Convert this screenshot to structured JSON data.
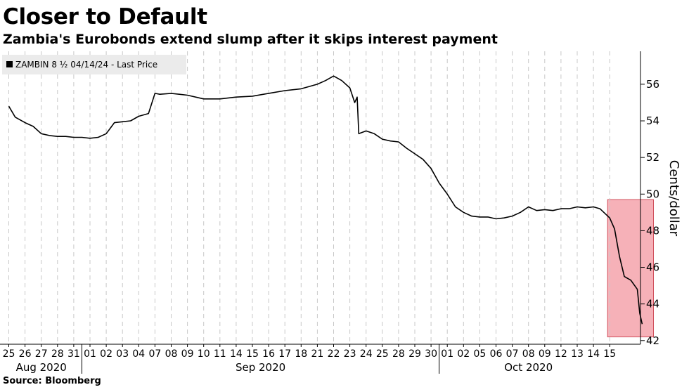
{
  "title": "Closer to Default",
  "subtitle": "Zambia's Eurobonds extend slump after it skips interest payment",
  "source": "Source: Bloomberg",
  "chart_data": {
    "type": "line",
    "ylabel": "Cents/dollar",
    "ylim": [
      41.8,
      57.8
    ],
    "yticks": [
      42,
      44,
      46,
      48,
      50,
      52,
      54,
      56
    ],
    "grid": "vertical dashed",
    "legend_position": "top-left",
    "series": [
      {
        "name": "ZAMBIN 8 ½ 04/14/24 - Last Price",
        "color": "#000000",
        "values": [
          [
            0,
            54.8
          ],
          [
            0.4,
            54.2
          ],
          [
            1.0,
            53.9
          ],
          [
            1.5,
            53.7
          ],
          [
            2.0,
            53.3
          ],
          [
            2.5,
            53.2
          ],
          [
            3.0,
            53.15
          ],
          [
            3.5,
            53.15
          ],
          [
            4.0,
            53.1
          ],
          [
            4.5,
            53.1
          ],
          [
            5.0,
            53.05
          ],
          [
            5.5,
            53.1
          ],
          [
            6.0,
            53.3
          ],
          [
            6.5,
            53.9
          ],
          [
            7.0,
            53.95
          ],
          [
            7.5,
            54.0
          ],
          [
            8.0,
            54.25
          ],
          [
            8.6,
            54.4
          ],
          [
            9.0,
            55.5
          ],
          [
            9.3,
            55.45
          ],
          [
            10.0,
            55.5
          ],
          [
            10.5,
            55.45
          ],
          [
            11.0,
            55.4
          ],
          [
            12.0,
            55.2
          ],
          [
            13.0,
            55.2
          ],
          [
            14.0,
            55.3
          ],
          [
            15.0,
            55.35
          ],
          [
            16.0,
            55.5
          ],
          [
            17.0,
            55.65
          ],
          [
            18.0,
            55.75
          ],
          [
            19.0,
            56.0
          ],
          [
            19.5,
            56.2
          ],
          [
            20.0,
            56.45
          ],
          [
            20.5,
            56.2
          ],
          [
            21.0,
            55.8
          ],
          [
            21.3,
            55.0
          ],
          [
            21.45,
            55.3
          ],
          [
            21.55,
            53.3
          ],
          [
            22.0,
            53.45
          ],
          [
            22.5,
            53.3
          ],
          [
            23.0,
            53.0
          ],
          [
            23.5,
            52.9
          ],
          [
            24.0,
            52.85
          ],
          [
            24.5,
            52.5
          ],
          [
            25.0,
            52.2
          ],
          [
            25.5,
            51.9
          ],
          [
            26.0,
            51.4
          ],
          [
            26.5,
            50.6
          ],
          [
            27.0,
            50.0
          ],
          [
            27.5,
            49.3
          ],
          [
            28.0,
            49.0
          ],
          [
            28.5,
            48.8
          ],
          [
            29.0,
            48.75
          ],
          [
            29.5,
            48.75
          ],
          [
            30.0,
            48.65
          ],
          [
            30.5,
            48.7
          ],
          [
            31.0,
            48.8
          ],
          [
            31.5,
            49.0
          ],
          [
            32.0,
            49.3
          ],
          [
            32.5,
            49.1
          ],
          [
            33.0,
            49.15
          ],
          [
            33.5,
            49.1
          ],
          [
            34.0,
            49.2
          ],
          [
            34.5,
            49.2
          ],
          [
            35.0,
            49.3
          ],
          [
            35.5,
            49.25
          ],
          [
            36.0,
            49.3
          ],
          [
            36.4,
            49.2
          ],
          [
            37.0,
            48.7
          ],
          [
            37.3,
            48.1
          ],
          [
            37.6,
            46.6
          ],
          [
            37.9,
            45.5
          ],
          [
            38.3,
            45.3
          ],
          [
            38.7,
            44.8
          ],
          [
            38.85,
            43.5
          ],
          [
            39.0,
            42.9
          ]
        ]
      }
    ],
    "x_categories": [
      "25",
      "26",
      "27",
      "28",
      "31",
      "01",
      "02",
      "03",
      "04",
      "07",
      "08",
      "09",
      "10",
      "11",
      "14",
      "15",
      "16",
      "17",
      "18",
      "21",
      "22",
      "23",
      "24",
      "25",
      "28",
      "29",
      "30",
      "01",
      "02",
      "05",
      "06",
      "07",
      "08",
      "09",
      "12",
      "13",
      "14",
      "15"
    ],
    "months": [
      {
        "label": "Aug 2020",
        "start": 0,
        "end": 5
      },
      {
        "label": "Sep 2020",
        "start": 5,
        "end": 27
      },
      {
        "label": "Oct 2020",
        "start": 27,
        "end": 38
      }
    ],
    "highlight": {
      "x_start": 37,
      "x_end": 40,
      "y_start": 42.2,
      "y_end": 49.7,
      "color": "#f4a3ab"
    },
    "legend": {
      "label": "ZAMBIN 8 ½ 04/14/24 - Last Price"
    }
  }
}
